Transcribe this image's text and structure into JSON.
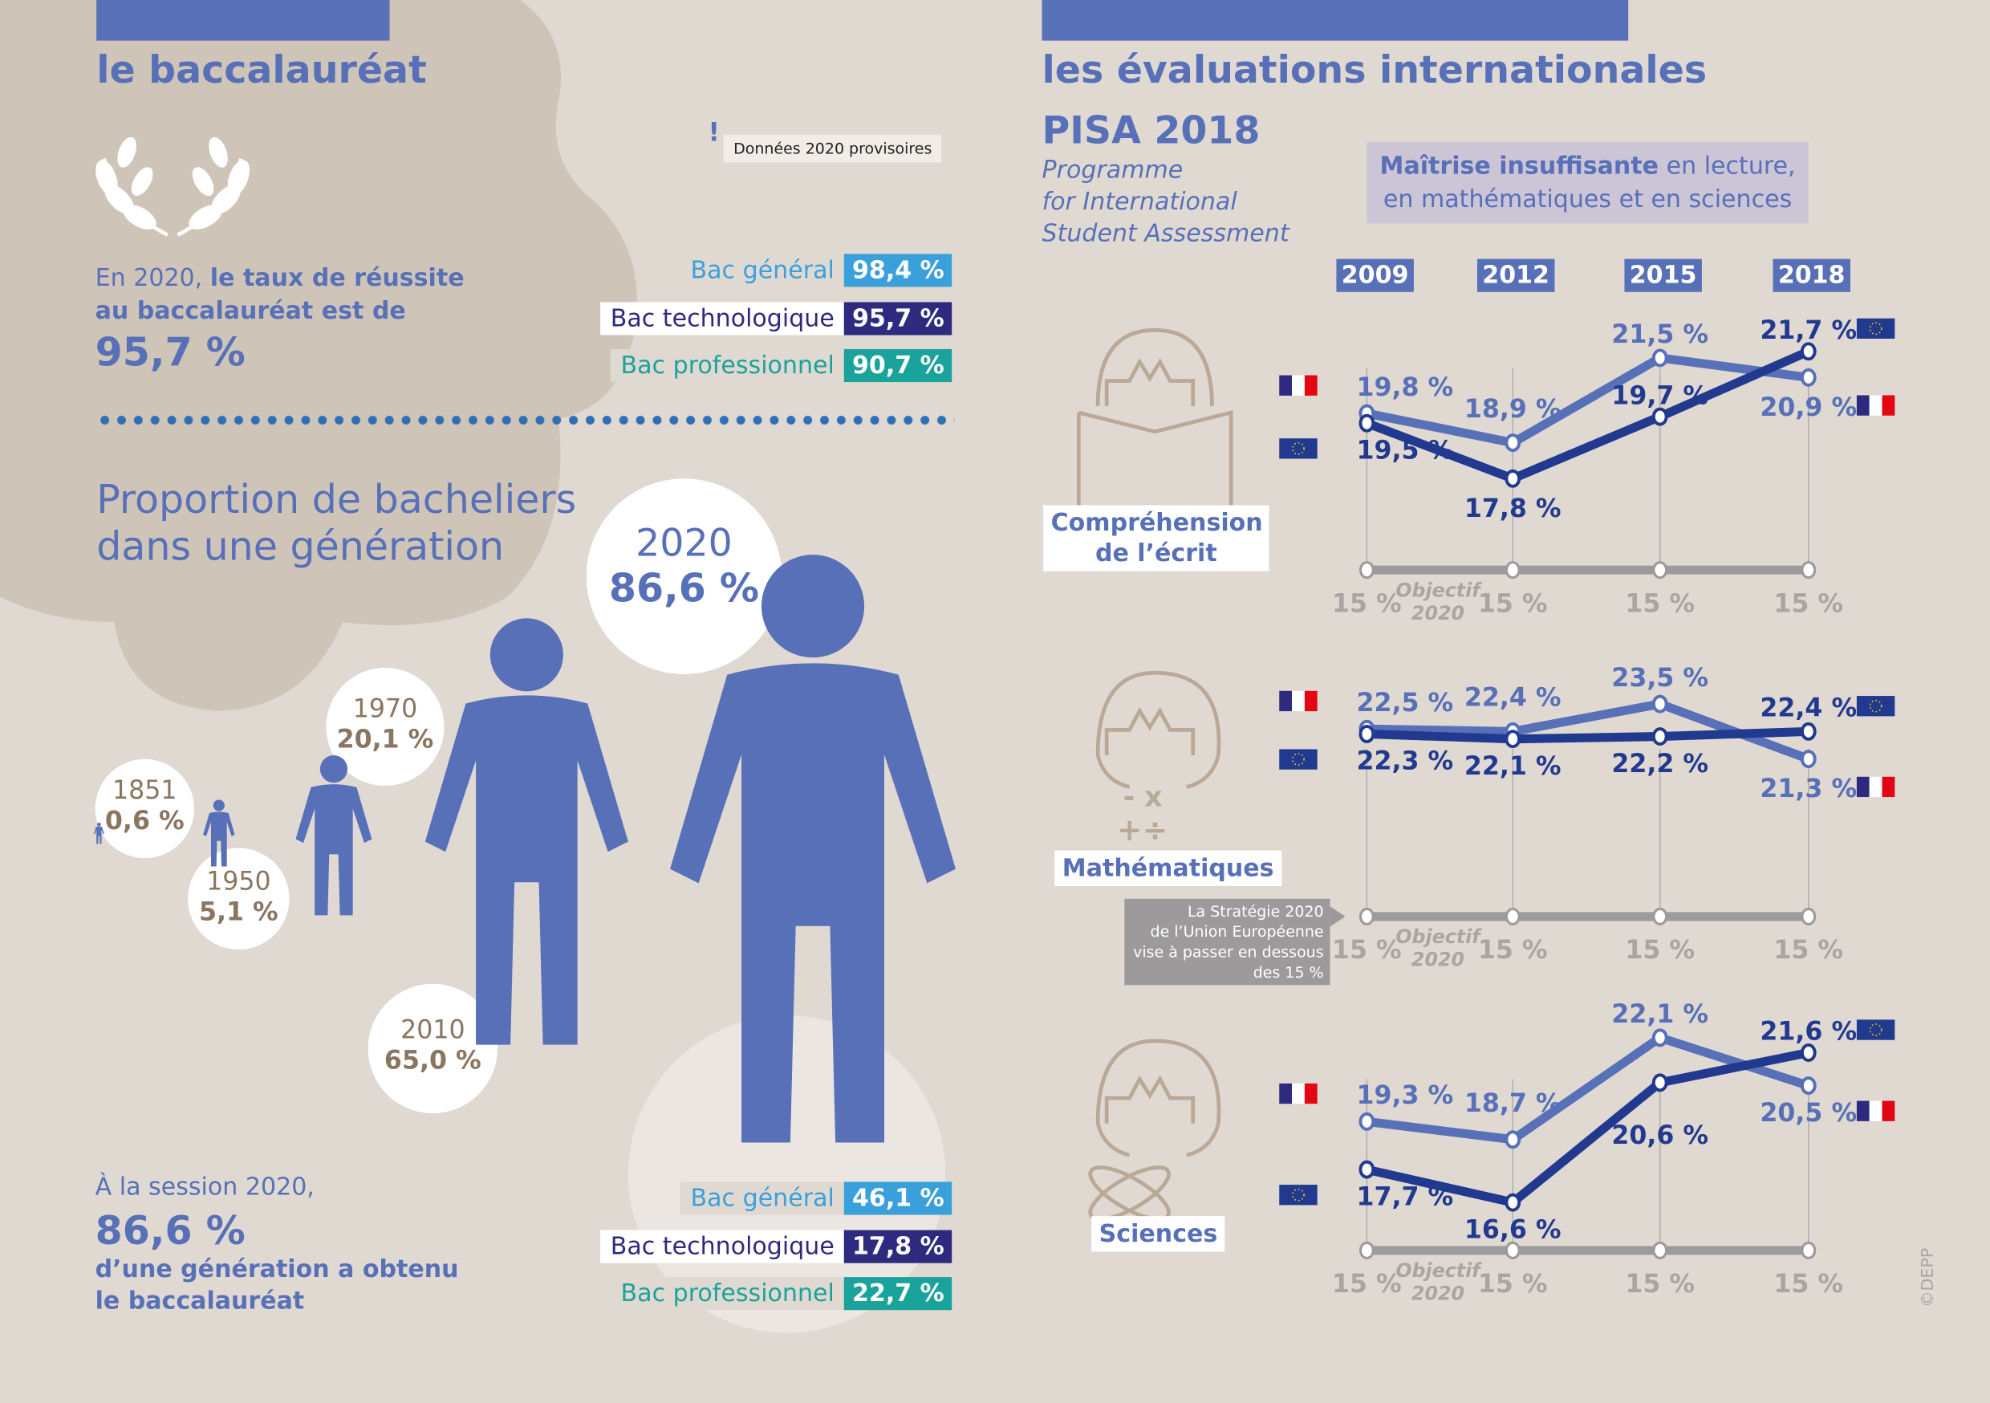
{
  "left": {
    "title": "le baccalauréat",
    "note": "Données 2020 provisoires",
    "note_icon": "exclamation-icon",
    "intro_prefix": "En 2020, ",
    "intro_bold": "le taux de réussite au baccalauréat est de",
    "intro_value": "95,7 %",
    "success_rates": [
      {
        "label": "Bac général",
        "value": "98,4 %",
        "color": "#3aa0dc"
      },
      {
        "label": "Bac technologique",
        "value": "95,7 %",
        "color": "#2e2a7f"
      },
      {
        "label": "Bac professionnel",
        "value": "90,7 %",
        "color": "#1aa39a"
      }
    ],
    "proportion_title_1": "Proportion de bacheliers",
    "proportion_title_2": "dans une génération",
    "generations": [
      {
        "year": "1851",
        "value": "0,6 %"
      },
      {
        "year": "1950",
        "value": "5,1 %"
      },
      {
        "year": "1970",
        "value": "20,1 %"
      },
      {
        "year": "2010",
        "value": "65,0 %"
      },
      {
        "year": "2020",
        "value": "86,6 %"
      }
    ],
    "session_text": "À la session 2020,",
    "session_value": "86,6 %",
    "session_desc_1": "d’une génération a obtenu",
    "session_desc_2": "le baccalauréat",
    "generation_shares": [
      {
        "label": "Bac général",
        "value": "46,1 %",
        "color": "#3aa0dc"
      },
      {
        "label": "Bac technologique",
        "value": "17,8 %",
        "color": "#2e2a7f"
      },
      {
        "label": "Bac professionnel",
        "value": "22,7 %",
        "color": "#1aa39a"
      }
    ]
  },
  "right": {
    "title": "les évaluations internationales",
    "pisa": "PISA 2018",
    "pisa_sub": [
      "Programme",
      "for International",
      "Student Assessment"
    ],
    "legend_bold": "Maîtrise insuffisante",
    "legend_rest_1": " en lecture,",
    "legend_rest_2": "en mathématiques et en sciences",
    "years": [
      "2009",
      "2012",
      "2015",
      "2018"
    ],
    "objective_label": "Objectif",
    "objective_year": "2020",
    "objective_value": "15 %",
    "strategy_note": [
      "La Stratégie 2020",
      "de l’Union Européenne",
      "vise à passer en dessous",
      "des 15 %"
    ],
    "credit": "©DEPP"
  },
  "chart_data": [
    {
      "type": "line",
      "title": "Compréhension de l’écrit",
      "categories": [
        "2009",
        "2012",
        "2015",
        "2018"
      ],
      "series": [
        {
          "name": "France",
          "flag": "france-flag",
          "color": "#5770b8",
          "values": [
            19.8,
            18.9,
            21.5,
            20.9
          ],
          "labels": [
            "19,8 %",
            "18,9 %",
            "21,5 %",
            "20,9 %"
          ]
        },
        {
          "name": "UE",
          "flag": "eu-flag",
          "color": "#213a8f",
          "values": [
            19.5,
            17.8,
            19.7,
            21.7
          ],
          "labels": [
            "19,5 %",
            "17,8 %",
            "19,7 %",
            "21,7 %"
          ]
        }
      ],
      "objective": 15
    },
    {
      "type": "line",
      "title": "Mathématiques",
      "categories": [
        "2009",
        "2012",
        "2015",
        "2018"
      ],
      "series": [
        {
          "name": "France",
          "flag": "france-flag",
          "color": "#5770b8",
          "values": [
            22.5,
            22.4,
            23.5,
            21.3
          ],
          "labels": [
            "22,5 %",
            "22,4 %",
            "23,5 %",
            "21,3 %"
          ]
        },
        {
          "name": "UE",
          "flag": "eu-flag",
          "color": "#213a8f",
          "values": [
            22.3,
            22.1,
            22.2,
            22.4
          ],
          "labels": [
            "22,3 %",
            "22,1 %",
            "22,2 %",
            "22,4 %"
          ]
        }
      ],
      "objective": 15
    },
    {
      "type": "line",
      "title": "Sciences",
      "categories": [
        "2009",
        "2012",
        "2015",
        "2018"
      ],
      "series": [
        {
          "name": "France",
          "flag": "france-flag",
          "color": "#5770b8",
          "values": [
            19.3,
            18.7,
            22.1,
            20.5
          ],
          "labels": [
            "19,3 %",
            "18,7 %",
            "22,1 %",
            "20,5 %"
          ]
        },
        {
          "name": "UE",
          "flag": "eu-flag",
          "color": "#213a8f",
          "values": [
            17.7,
            16.6,
            20.6,
            21.6
          ],
          "labels": [
            "17,7 %",
            "16,6 %",
            "20,6 %",
            "21,6 %"
          ]
        }
      ],
      "objective": 15
    }
  ]
}
